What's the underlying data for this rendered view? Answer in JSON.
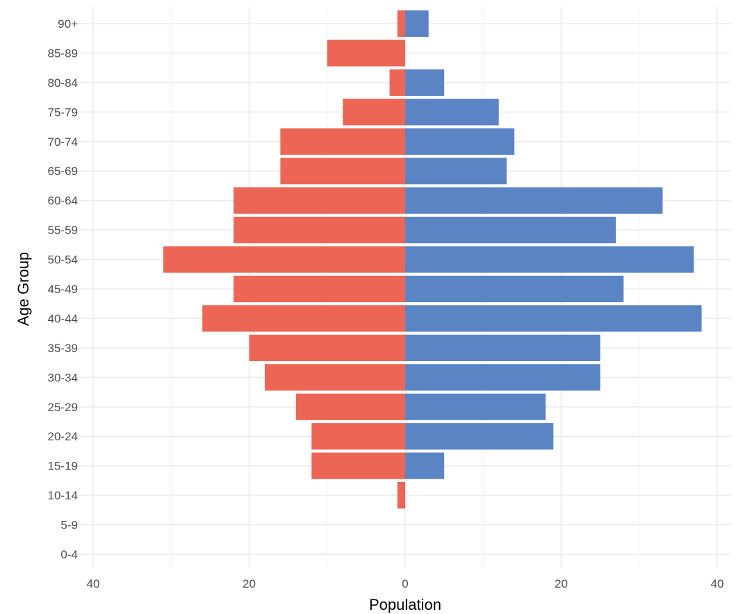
{
  "chart_data": {
    "type": "bar",
    "orientation": "horizontal",
    "layout": "population-pyramid",
    "xlabel": "Population",
    "ylabel": "Age Group",
    "xlim": [
      -40,
      40
    ],
    "xticks": [
      -40,
      -20,
      0,
      20,
      40
    ],
    "xtick_labels": [
      "40",
      "20",
      "0",
      "20",
      "40"
    ],
    "categories": [
      "0-4",
      "5-9",
      "10-14",
      "15-19",
      "20-24",
      "25-29",
      "30-34",
      "35-39",
      "40-44",
      "45-49",
      "50-54",
      "55-59",
      "60-64",
      "65-69",
      "70-74",
      "75-79",
      "80-84",
      "85-89",
      "90+"
    ],
    "series": [
      {
        "color": "#ED6655",
        "side": "left",
        "values": [
          0,
          0,
          1,
          12,
          12,
          14,
          18,
          20,
          26,
          22,
          31,
          22,
          22,
          16,
          16,
          8,
          2,
          10,
          1
        ]
      },
      {
        "color": "#5B84C4",
        "side": "right",
        "values": [
          0,
          0,
          0,
          5,
          19,
          18,
          25,
          25,
          38,
          28,
          37,
          27,
          33,
          13,
          14,
          12,
          5,
          0,
          3
        ]
      }
    ],
    "grid": true,
    "legend": "none"
  }
}
